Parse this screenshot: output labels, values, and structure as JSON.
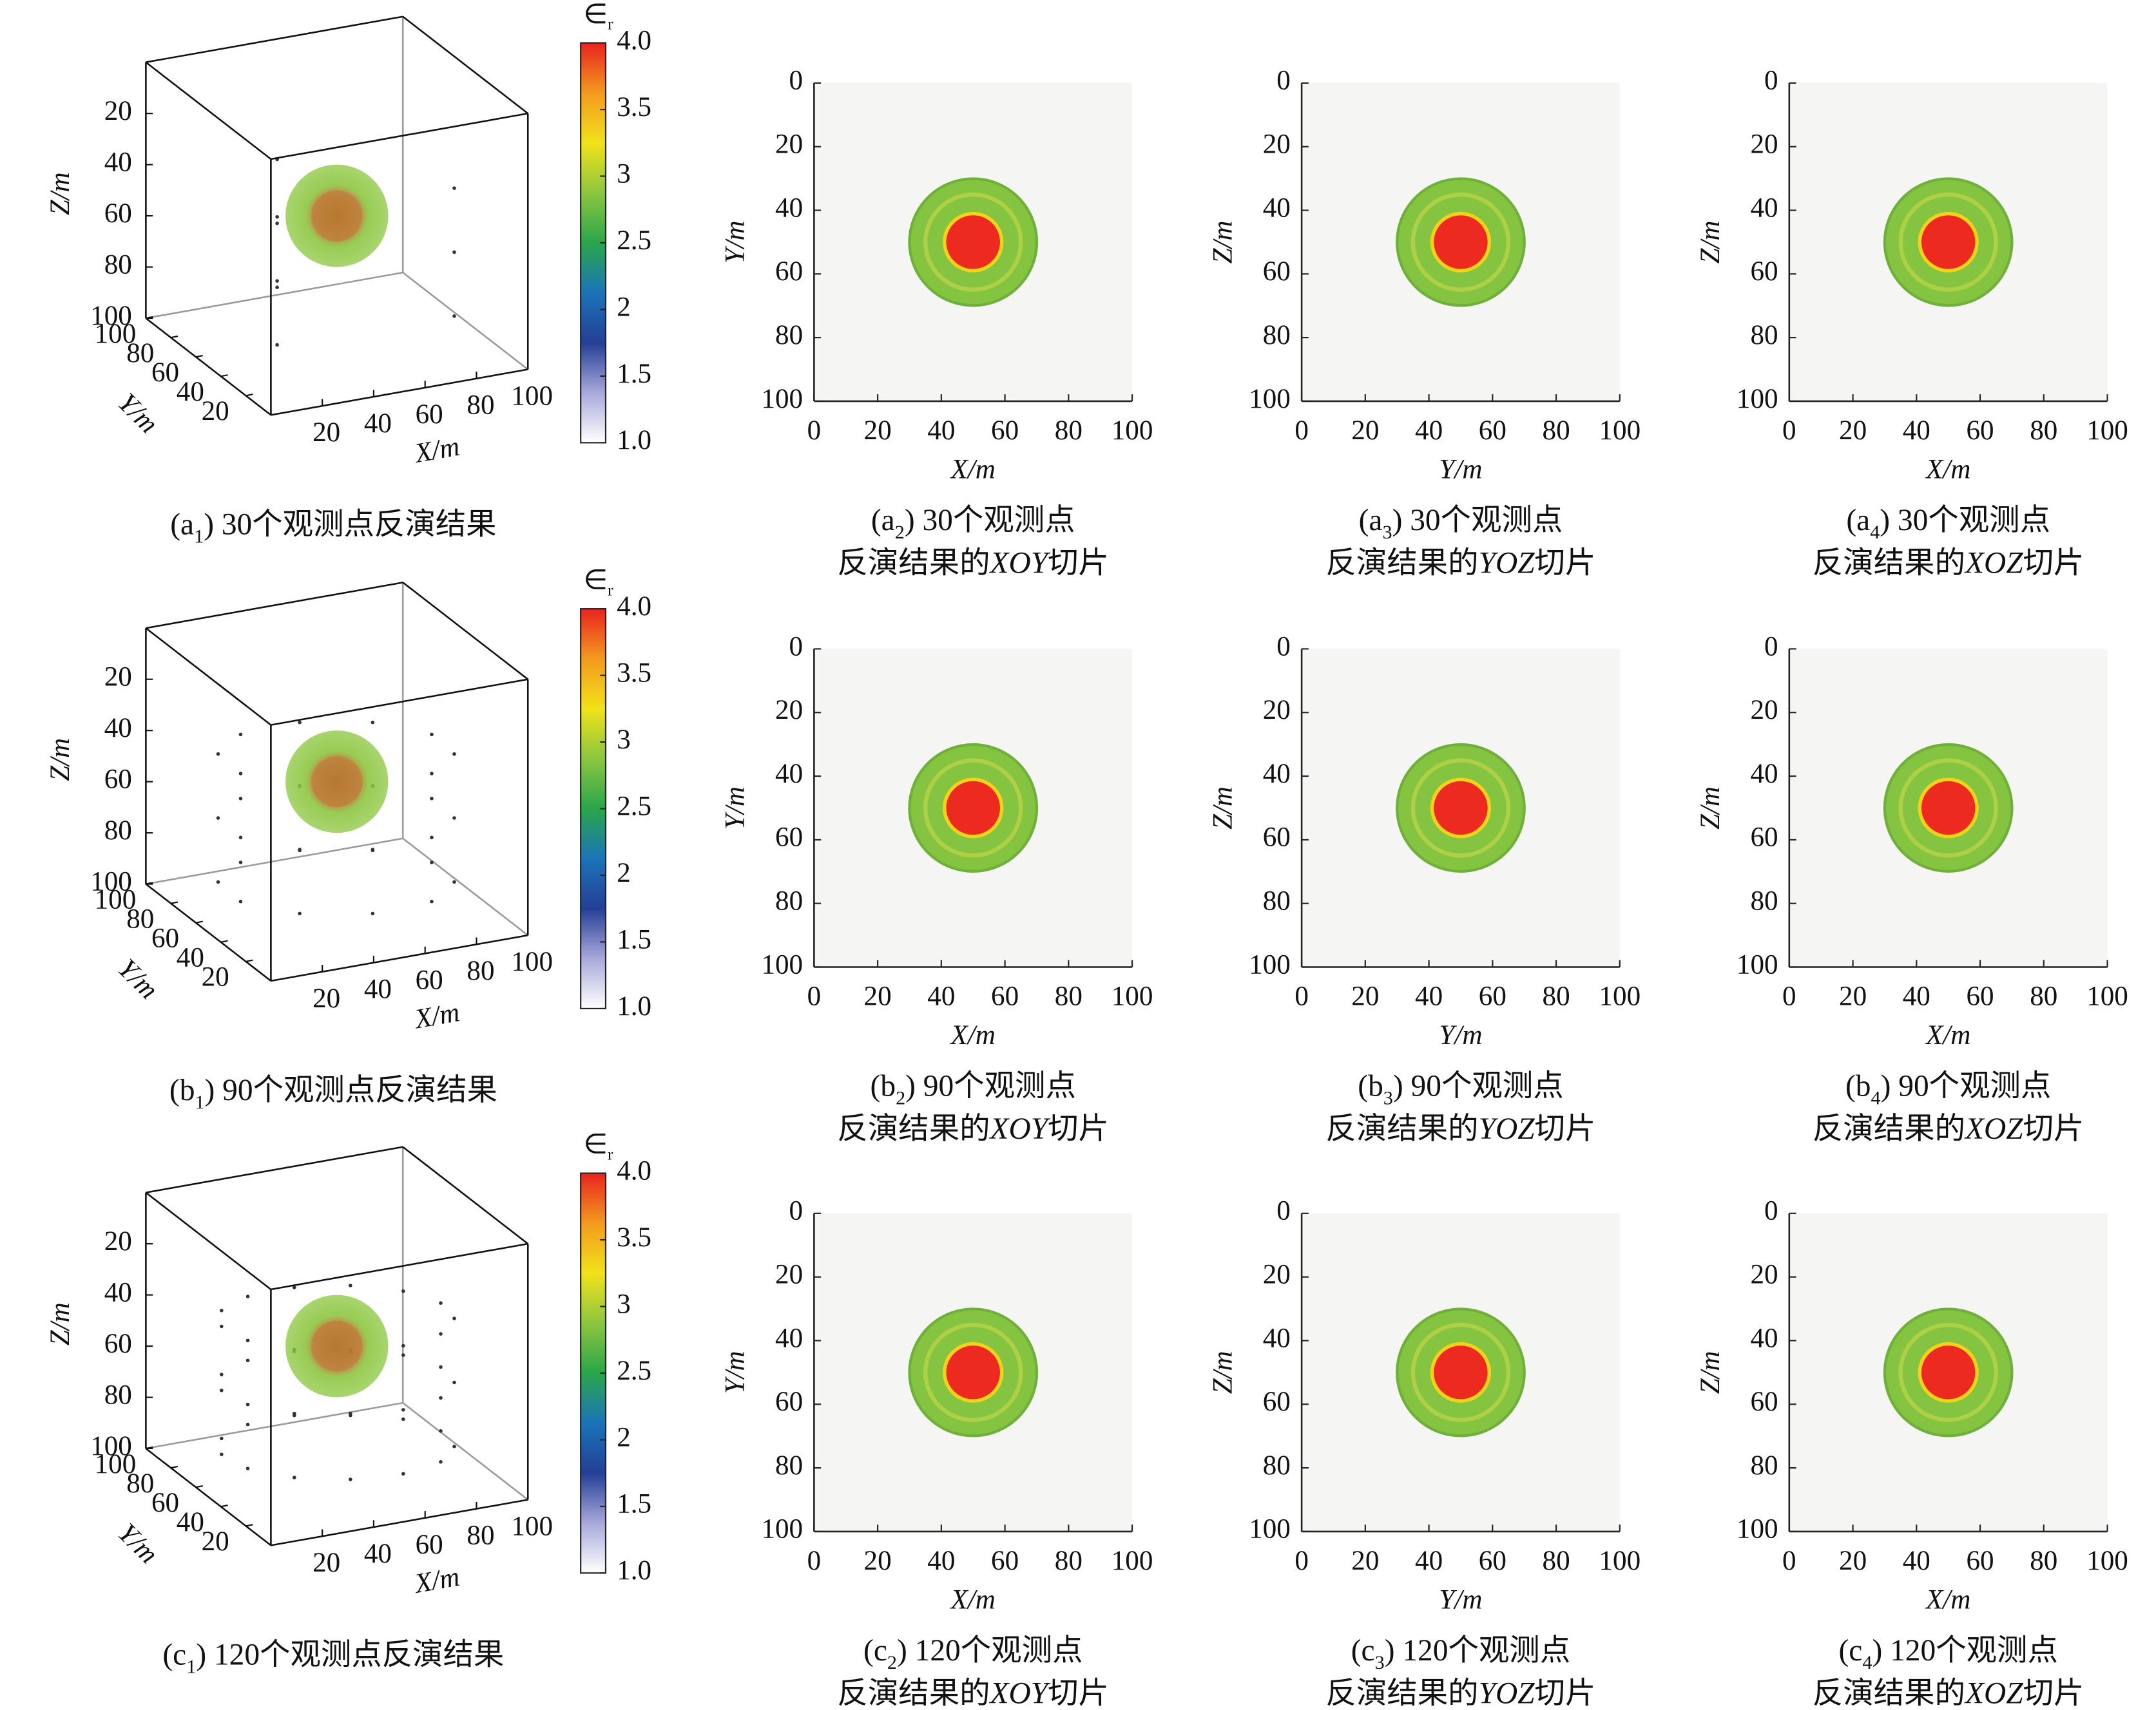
{
  "chart_data": [
    {
      "type": "volume3d",
      "xlabel": "X/m",
      "ylabel": "Y/m",
      "zlabel": "Z/m",
      "xlim": [
        0,
        100
      ],
      "ylim": [
        0,
        100
      ],
      "zlim": [
        0,
        100
      ],
      "xticks": [
        20,
        40,
        60,
        80,
        100
      ],
      "yticks": [
        20,
        40,
        60,
        80,
        100
      ],
      "zticks": [
        20,
        40,
        60,
        80,
        100
      ],
      "sphere": {
        "center": [
          50,
          50,
          50
        ],
        "radius": 20,
        "core_radius": 10,
        "color": "#8cc63f",
        "core_color": "#b8782e"
      },
      "colorbar_label": "∈",
      "colorbar_label_sub": "r",
      "clim": [
        1,
        4
      ],
      "cticks": [
        {
          "value": 1,
          "label": "1.0"
        },
        1.5,
        2,
        2.5,
        3,
        3.5,
        {
          "value": 4,
          "label": "4.0"
        }
      ],
      "colormap": [
        "#ffffff",
        "#a8a8da",
        "#243f96",
        "#1b74b8",
        "#2aa64a",
        "#8cc63f",
        "#f2e21a",
        "#f39a1f",
        "#e8231f"
      ],
      "caption": [
        "(a",
        "1",
        ") 30个观测点反演结果"
      ]
    },
    {
      "type": "heatmap",
      "xlabel": "X/m",
      "ylabel": "Y/m",
      "xlim": [
        0,
        100
      ],
      "ylim": [
        100,
        0
      ],
      "xticks": [
        0,
        20,
        40,
        60,
        80,
        100
      ],
      "yticks": [
        0,
        20,
        40,
        60,
        80,
        100
      ],
      "background": "#f5f5f4",
      "anomaly": {
        "center": [
          50,
          50
        ],
        "outer_radius": 20,
        "inner_radius": 9,
        "outer_color": "#84c441",
        "inner_color": "#ec2a1f"
      },
      "caption_line1": [
        "(a",
        "2",
        ") 30个观测点"
      ],
      "caption_line2": [
        "反演结果的",
        "XOY",
        "切片"
      ]
    },
    {
      "type": "heatmap",
      "xlabel": "Y/m",
      "ylabel": "Z/m",
      "xlim": [
        0,
        100
      ],
      "ylim": [
        100,
        0
      ],
      "xticks": [
        0,
        20,
        40,
        60,
        80,
        100
      ],
      "yticks": [
        0,
        20,
        40,
        60,
        80,
        100
      ],
      "background": "#f5f5f4",
      "anomaly": {
        "center": [
          50,
          50
        ],
        "outer_radius": 20,
        "inner_radius": 9,
        "outer_color": "#84c441",
        "inner_color": "#ec2a1f"
      },
      "caption_line1": [
        "(a",
        "3",
        ") 30个观测点"
      ],
      "caption_line2": [
        "反演结果的",
        "YOZ",
        "切片"
      ]
    },
    {
      "type": "heatmap",
      "xlabel": "X/m",
      "ylabel": "Z/m",
      "xlim": [
        0,
        100
      ],
      "ylim": [
        100,
        0
      ],
      "xticks": [
        0,
        20,
        40,
        60,
        80,
        100
      ],
      "yticks": [
        0,
        20,
        40,
        60,
        80,
        100
      ],
      "background": "#f5f5f4",
      "anomaly": {
        "center": [
          50,
          50
        ],
        "outer_radius": 20,
        "inner_radius": 9,
        "outer_color": "#84c441",
        "inner_color": "#ec2a1f"
      },
      "caption_line1": [
        "(a",
        "4",
        ") 30个观测点"
      ],
      "caption_line2": [
        "反演结果的",
        "XOZ",
        "切片"
      ]
    },
    {
      "type": "volume3d",
      "xlabel": "X/m",
      "ylabel": "Y/m",
      "zlabel": "Z/m",
      "xlim": [
        0,
        100
      ],
      "ylim": [
        0,
        100
      ],
      "zlim": [
        0,
        100
      ],
      "xticks": [
        20,
        40,
        60,
        80,
        100
      ],
      "yticks": [
        20,
        40,
        60,
        80,
        100
      ],
      "zticks": [
        20,
        40,
        60,
        80,
        100
      ],
      "sphere": {
        "center": [
          50,
          50,
          50
        ],
        "radius": 20,
        "core_radius": 10,
        "color": "#8cc63f",
        "core_color": "#b8782e"
      },
      "colorbar_label": "∈",
      "colorbar_label_sub": "r",
      "clim": [
        1,
        4
      ],
      "cticks": [
        {
          "value": 1,
          "label": "1.0"
        },
        1.5,
        2,
        2.5,
        3,
        3.5,
        {
          "value": 4,
          "label": "4.0"
        }
      ],
      "colormap": [
        "#ffffff",
        "#a8a8da",
        "#243f96",
        "#1b74b8",
        "#2aa64a",
        "#8cc63f",
        "#f2e21a",
        "#f39a1f",
        "#e8231f"
      ],
      "caption": [
        "(b",
        "1",
        ") 90个观测点反演结果"
      ]
    },
    {
      "type": "heatmap",
      "xlabel": "X/m",
      "ylabel": "Y/m",
      "xlim": [
        0,
        100
      ],
      "ylim": [
        100,
        0
      ],
      "xticks": [
        0,
        20,
        40,
        60,
        80,
        100
      ],
      "yticks": [
        0,
        20,
        40,
        60,
        80,
        100
      ],
      "background": "#f5f5f4",
      "anomaly": {
        "center": [
          50,
          50
        ],
        "outer_radius": 20,
        "inner_radius": 9,
        "outer_color": "#84c441",
        "inner_color": "#ec2a1f"
      },
      "caption_line1": [
        "(b",
        "2",
        ") 90个观测点"
      ],
      "caption_line2": [
        "反演结果的",
        "XOY",
        "切片"
      ]
    },
    {
      "type": "heatmap",
      "xlabel": "Y/m",
      "ylabel": "Z/m",
      "xlim": [
        0,
        100
      ],
      "ylim": [
        100,
        0
      ],
      "xticks": [
        0,
        20,
        40,
        60,
        80,
        100
      ],
      "yticks": [
        0,
        20,
        40,
        60,
        80,
        100
      ],
      "background": "#f5f5f4",
      "anomaly": {
        "center": [
          50,
          50
        ],
        "outer_radius": 20,
        "inner_radius": 9,
        "outer_color": "#84c441",
        "inner_color": "#ec2a1f"
      },
      "caption_line1": [
        "(b",
        "3",
        ") 90个观测点"
      ],
      "caption_line2": [
        "反演结果的",
        "YOZ",
        "切片"
      ]
    },
    {
      "type": "heatmap",
      "xlabel": "X/m",
      "ylabel": "Z/m",
      "xlim": [
        0,
        100
      ],
      "ylim": [
        100,
        0
      ],
      "xticks": [
        0,
        20,
        40,
        60,
        80,
        100
      ],
      "yticks": [
        0,
        20,
        40,
        60,
        80,
        100
      ],
      "background": "#f5f5f4",
      "anomaly": {
        "center": [
          50,
          50
        ],
        "outer_radius": 20,
        "inner_radius": 9,
        "outer_color": "#84c441",
        "inner_color": "#ec2a1f"
      },
      "caption_line1": [
        "(b",
        "4",
        ") 90个观测点"
      ],
      "caption_line2": [
        "反演结果的",
        "XOZ",
        "切片"
      ]
    },
    {
      "type": "volume3d",
      "xlabel": "X/m",
      "ylabel": "Y/m",
      "zlabel": "Z/m",
      "xlim": [
        0,
        100
      ],
      "ylim": [
        0,
        100
      ],
      "zlim": [
        0,
        100
      ],
      "xticks": [
        20,
        40,
        60,
        80,
        100
      ],
      "yticks": [
        20,
        40,
        60,
        80,
        100
      ],
      "zticks": [
        20,
        40,
        60,
        80,
        100
      ],
      "sphere": {
        "center": [
          50,
          50,
          50
        ],
        "radius": 20,
        "core_radius": 10,
        "color": "#8cc63f",
        "core_color": "#b8782e"
      },
      "colorbar_label": "∈",
      "colorbar_label_sub": "r",
      "clim": [
        1,
        4
      ],
      "cticks": [
        {
          "value": 1,
          "label": "1.0"
        },
        1.5,
        2,
        2.5,
        3,
        3.5,
        {
          "value": 4,
          "label": "4.0"
        }
      ],
      "colormap": [
        "#ffffff",
        "#a8a8da",
        "#243f96",
        "#1b74b8",
        "#2aa64a",
        "#8cc63f",
        "#f2e21a",
        "#f39a1f",
        "#e8231f"
      ],
      "caption": [
        "(c",
        "1",
        ") 120个观测点反演结果"
      ]
    },
    {
      "type": "heatmap",
      "xlabel": "X/m",
      "ylabel": "Y/m",
      "xlim": [
        0,
        100
      ],
      "ylim": [
        100,
        0
      ],
      "xticks": [
        0,
        20,
        40,
        60,
        80,
        100
      ],
      "yticks": [
        0,
        20,
        40,
        60,
        80,
        100
      ],
      "background": "#f5f5f4",
      "anomaly": {
        "center": [
          50,
          50
        ],
        "outer_radius": 20,
        "inner_radius": 9,
        "outer_color": "#84c441",
        "inner_color": "#ec2a1f"
      },
      "caption_line1": [
        "(c",
        "2",
        ") 120个观测点"
      ],
      "caption_line2": [
        "反演结果的",
        "XOY",
        "切片"
      ]
    },
    {
      "type": "heatmap",
      "xlabel": "Y/m",
      "ylabel": "Z/m",
      "xlim": [
        0,
        100
      ],
      "ylim": [
        100,
        0
      ],
      "xticks": [
        0,
        20,
        40,
        60,
        80,
        100
      ],
      "yticks": [
        0,
        20,
        40,
        60,
        80,
        100
      ],
      "background": "#f5f5f4",
      "anomaly": {
        "center": [
          50,
          50
        ],
        "outer_radius": 20,
        "inner_radius": 9,
        "outer_color": "#84c441",
        "inner_color": "#ec2a1f"
      },
      "caption_line1": [
        "(c",
        "3",
        ") 120个观测点"
      ],
      "caption_line2": [
        "反演结果的",
        "YOZ",
        "切片"
      ]
    },
    {
      "type": "heatmap",
      "xlabel": "X/m",
      "ylabel": "Z/m",
      "xlim": [
        0,
        100
      ],
      "ylim": [
        100,
        0
      ],
      "xticks": [
        0,
        20,
        40,
        60,
        80,
        100
      ],
      "yticks": [
        0,
        20,
        40,
        60,
        80,
        100
      ],
      "background": "#f5f5f4",
      "anomaly": {
        "center": [
          50,
          50
        ],
        "outer_radius": 20,
        "inner_radius": 9,
        "outer_color": "#84c441",
        "inner_color": "#ec2a1f"
      },
      "caption_line1": [
        "(c",
        "4",
        ") 120个观测点"
      ],
      "caption_line2": [
        "反演结果的",
        "XOZ",
        "切片"
      ]
    }
  ]
}
